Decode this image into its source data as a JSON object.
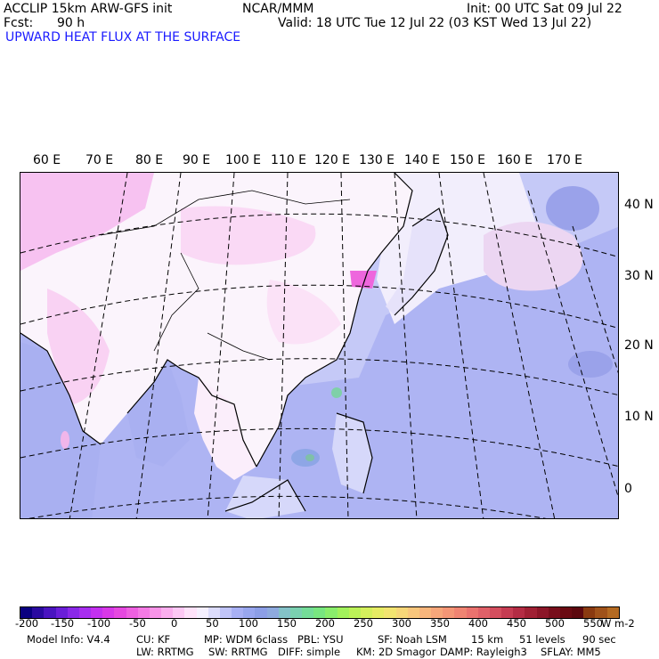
{
  "header": {
    "left_line1": "ACCLIP 15km ARW-GFS init",
    "center_line1": "NCAR/MMM",
    "right_line1": "Init: 00 UTC Sat 09 Jul 22",
    "fcst_label": "Fcst:",
    "fcst_value": "90 h",
    "valid_line": "Valid: 18 UTC Tue 12 Jul 22 (03 KST Wed 13 Jul 22)",
    "field_title": "UPWARD HEAT FLUX AT THE SURFACE",
    "title_color": "#1a1aff"
  },
  "map": {
    "lon_labels": [
      "60 E",
      "70 E",
      "80 E",
      "90 E",
      "100 E",
      "110 E",
      "120 E",
      "130 E",
      "140 E",
      "150 E",
      "160 E",
      "170 E"
    ],
    "lat_labels": [
      "40 N",
      "30 N",
      "20 N",
      "10 N",
      "0"
    ]
  },
  "colorbar": {
    "labels": [
      "-200",
      "-150",
      "-100",
      "-50",
      "0",
      "50",
      "100",
      "150",
      "200",
      "250",
      "300",
      "350",
      "400",
      "450",
      "500",
      "550"
    ],
    "units": "W m-2",
    "colors": [
      "#0a0080",
      "#2a0aa0",
      "#4a14c0",
      "#6a1ed8",
      "#8a28e8",
      "#a82ef0",
      "#c430f0",
      "#d838e8",
      "#e648e0",
      "#ee60e0",
      "#f47ae4",
      "#f894e8",
      "#fbaeee",
      "#fdc8f4",
      "#fee2fa",
      "#f5f0ff",
      "#dcdcfc",
      "#c0c4f8",
      "#a8b0f4",
      "#98a6ee",
      "#8c9ee6",
      "#8eaade",
      "#84c2c8",
      "#7ad0b0",
      "#74dc98",
      "#78e680",
      "#8aee6c",
      "#a2f25c",
      "#bcf258",
      "#d4f05c",
      "#e6ec64",
      "#f2e470",
      "#f6d678",
      "#f8c67c",
      "#f8b67c",
      "#f6a67a",
      "#f49676",
      "#f08472",
      "#ea726e",
      "#e06068",
      "#d44e5e",
      "#c63c52",
      "#b42c44",
      "#a02034",
      "#8c1628",
      "#780e1c",
      "#6a0a12",
      "#5c080e",
      "#8a3a10",
      "#a0521a",
      "#b46a22"
    ]
  },
  "footer": {
    "line1": [
      "Model Info: V4.4",
      "CU: KF",
      "MP: WDM 6class",
      "PBL: YSU",
      "SF: Noah LSM",
      "15 km",
      "51 levels",
      "90 sec"
    ],
    "line2": [
      "LW: RRTMG",
      "SW: RRTMG",
      "DIFF: simple",
      "KM: 2D Smagor",
      "DAMP: Rayleigh3",
      "SFLAY: MM5"
    ]
  }
}
